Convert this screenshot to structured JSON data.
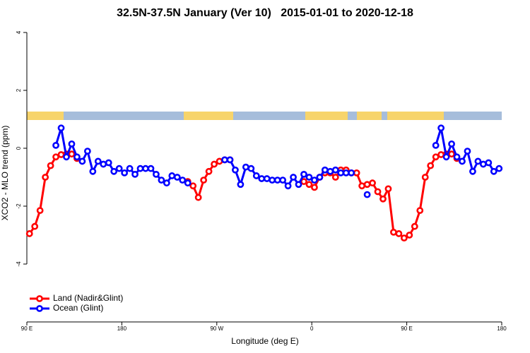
{
  "chart_data": {
    "type": "line",
    "title": "32.5N-37.5N January (Ver 10)   2015-01-01 to 2020-12-18",
    "x_label": "Longitude (deg E)",
    "y_label": "XCO2 - MLO trend (ppm)",
    "x": [
      92.5,
      97.5,
      102.5,
      107.5,
      112.5,
      117.5,
      122.5,
      127.5,
      132.5,
      137.5,
      142.5,
      147.5,
      152.5,
      157.5,
      162.5,
      167.5,
      172.5,
      177.5,
      182.5,
      187.5,
      192.5,
      197.5,
      202.5,
      207.5,
      212.5,
      217.5,
      222.5,
      227.5,
      232.5,
      237.5,
      242.5,
      247.5,
      252.5,
      257.5,
      262.5,
      267.5,
      272.5,
      277.5,
      282.5,
      287.5,
      292.5,
      297.5,
      302.5,
      307.5,
      312.5,
      317.5,
      322.5,
      327.5,
      332.5,
      337.5,
      342.5,
      347.5,
      352.5,
      357.5,
      362.5,
      367.5,
      372.5,
      377.5,
      382.5,
      387.5,
      392.5,
      397.5,
      402.5,
      407.5,
      412.5,
      417.5,
      422.5,
      427.5,
      432.5,
      437.5,
      442.5,
      447.5,
      452.5,
      457.5,
      462.5,
      467.5,
      472.5,
      477.5,
      482.5,
      487.5,
      492.5,
      497.5,
      502.5,
      507.5,
      512.5,
      517.5,
      522.5,
      527.5,
      532.5,
      537.5
    ],
    "series": [
      {
        "name": "Land (Nadir&Glint)",
        "color": "#ff0000",
        "values": [
          -2.95,
          -2.7,
          -2.15,
          -1.0,
          -0.6,
          -0.3,
          -0.22,
          -0.2,
          -0.2,
          -0.35,
          null,
          null,
          null,
          null,
          null,
          null,
          null,
          null,
          null,
          null,
          null,
          null,
          null,
          null,
          null,
          null,
          null,
          null,
          null,
          null,
          -1.15,
          -1.3,
          -1.7,
          -1.1,
          -0.8,
          -0.55,
          -0.45,
          -0.4,
          -0.4,
          null,
          null,
          null,
          null,
          null,
          null,
          null,
          null,
          null,
          null,
          null,
          null,
          null,
          -1.15,
          -1.25,
          -1.35,
          -1.0,
          -0.85,
          -0.85,
          -1.0,
          -0.75,
          -0.75,
          -0.85,
          -0.85,
          -1.3,
          -1.25,
          -1.2,
          -1.5,
          -1.75,
          -1.4,
          -2.9,
          -2.95,
          -3.1,
          -3.0,
          -2.7,
          -2.15,
          -1.0,
          -0.6,
          -0.3,
          -0.22,
          -0.2,
          -0.2,
          -0.35,
          null,
          null,
          null,
          null,
          null,
          null,
          null,
          null
        ]
      },
      {
        "name": "Ocean (Glint)",
        "color": "#0000ff",
        "values": [
          null,
          null,
          null,
          null,
          null,
          0.1,
          0.7,
          -0.3,
          0.15,
          -0.3,
          -0.45,
          -0.1,
          -0.8,
          -0.45,
          -0.55,
          -0.5,
          -0.8,
          -0.7,
          -0.85,
          -0.7,
          -0.9,
          -0.7,
          -0.7,
          -0.7,
          -0.9,
          -1.1,
          -1.2,
          -0.95,
          -1.0,
          -1.1,
          -1.2,
          null,
          null,
          null,
          null,
          null,
          null,
          -0.4,
          -0.4,
          -0.75,
          -1.25,
          -0.65,
          -0.7,
          -0.95,
          -1.05,
          -1.05,
          -1.1,
          -1.1,
          -1.1,
          -1.3,
          -1.0,
          -1.25,
          -0.9,
          -1.0,
          -1.1,
          -1.0,
          -0.75,
          -0.8,
          -0.75,
          -0.85,
          -0.85,
          -0.85,
          null,
          null,
          -1.6,
          null,
          null,
          null,
          null,
          null,
          null,
          null,
          null,
          null,
          null,
          null,
          null,
          0.1,
          0.7,
          -0.3,
          0.15,
          -0.3,
          -0.45,
          -0.1,
          -0.8,
          -0.45,
          -0.55,
          -0.5,
          -0.8,
          -0.7
        ]
      }
    ],
    "xlim": [
      90,
      540
    ],
    "xticks": [
      {
        "value": 90,
        "label": "90 E"
      },
      180,
      {
        "value": 270,
        "label": "90 W"
      },
      {
        "value": 360,
        "label": "0"
      },
      {
        "value": 450,
        "label": "90 E"
      },
      {
        "value": 540,
        "label": "180"
      }
    ],
    "ylim": [
      -6,
      4.2
    ],
    "yticks": [
      4,
      2,
      0,
      -2,
      -4
    ],
    "legend": "lower-left"
  }
}
